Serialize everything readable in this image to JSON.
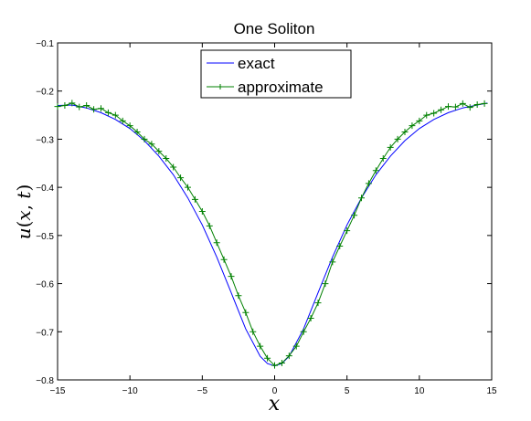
{
  "chart_data": {
    "type": "line",
    "title": "One Soliton",
    "xlabel": "x",
    "ylabel": "u(x, t)",
    "xlim": [
      -15,
      15
    ],
    "ylim": [
      -0.8,
      -0.1
    ],
    "xticks": [
      -15,
      -10,
      -5,
      0,
      5,
      10,
      15
    ],
    "yticks": [
      -0.8,
      -0.7,
      -0.6,
      -0.5,
      -0.4,
      -0.3,
      -0.2,
      -0.1
    ],
    "xtick_labels": [
      "−15",
      "−10",
      "−5",
      "0",
      "5",
      "10",
      "15"
    ],
    "ytick_labels": [
      "−0.8",
      "−0.7",
      "−0.6",
      "−0.5",
      "−0.4",
      "−0.3",
      "−0.2",
      "−0.1"
    ],
    "grid": false,
    "legend_position": "top-center",
    "series": [
      {
        "name": "exact",
        "color": "#0000ff",
        "marker": "none",
        "x": [
          -15,
          -14,
          -13,
          -12,
          -11,
          -10,
          -9,
          -8,
          -7,
          -6,
          -5,
          -4,
          -3,
          -2,
          -1,
          -0.5,
          0,
          0.5,
          1,
          2,
          3,
          4,
          5,
          6,
          7,
          8,
          9,
          10,
          11,
          12,
          13,
          14,
          14.7
        ],
        "y": [
          -0.23,
          -0.229,
          -0.235,
          -0.245,
          -0.259,
          -0.278,
          -0.303,
          -0.335,
          -0.374,
          -0.422,
          -0.478,
          -0.545,
          -0.619,
          -0.694,
          -0.751,
          -0.766,
          -0.771,
          -0.766,
          -0.751,
          -0.694,
          -0.619,
          -0.545,
          -0.478,
          -0.422,
          -0.374,
          -0.335,
          -0.303,
          -0.278,
          -0.259,
          -0.245,
          -0.235,
          -0.229,
          -0.225
        ]
      },
      {
        "name": "approximate",
        "color": "#008000",
        "marker": "+",
        "x": [
          -15,
          -14.5,
          -14,
          -13.5,
          -13,
          -12.5,
          -12,
          -11.5,
          -11,
          -10.5,
          -10,
          -9.5,
          -9,
          -8.5,
          -8,
          -7.5,
          -7,
          -6.5,
          -6,
          -5.5,
          -5,
          -4.5,
          -4,
          -3.5,
          -3,
          -2.5,
          -2,
          -1.5,
          -1,
          -0.5,
          0,
          0.5,
          1,
          1.5,
          2,
          2.5,
          3,
          3.5,
          4,
          4.5,
          5,
          5.5,
          6,
          6.5,
          7,
          7.5,
          8,
          8.5,
          9,
          9.5,
          10,
          10.5,
          11,
          11.5,
          12,
          12.5,
          13,
          13.5,
          14,
          14.5
        ],
        "y": [
          -0.232,
          -0.23,
          -0.225,
          -0.233,
          -0.23,
          -0.238,
          -0.236,
          -0.245,
          -0.25,
          -0.262,
          -0.272,
          -0.285,
          -0.3,
          -0.31,
          -0.325,
          -0.34,
          -0.358,
          -0.38,
          -0.4,
          -0.425,
          -0.45,
          -0.48,
          -0.515,
          -0.55,
          -0.585,
          -0.625,
          -0.66,
          -0.7,
          -0.73,
          -0.755,
          -0.77,
          -0.765,
          -0.75,
          -0.73,
          -0.7,
          -0.672,
          -0.64,
          -0.6,
          -0.555,
          -0.522,
          -0.49,
          -0.458,
          -0.422,
          -0.392,
          -0.365,
          -0.34,
          -0.317,
          -0.3,
          -0.285,
          -0.272,
          -0.262,
          -0.25,
          -0.246,
          -0.239,
          -0.232,
          -0.233,
          -0.226,
          -0.234,
          -0.228,
          -0.226
        ]
      }
    ]
  }
}
